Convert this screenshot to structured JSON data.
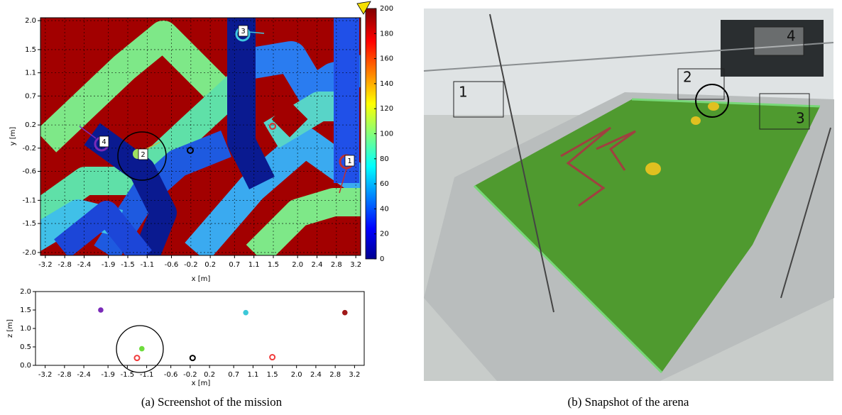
{
  "panel_a": {
    "map": {
      "xlabel": "x [m]",
      "ylabel": "y [m]",
      "xlim": [
        -3.3,
        3.3
      ],
      "ylim": [
        -2.05,
        2.05
      ],
      "xticks": [
        -3.2,
        -2.8,
        -2.4,
        -1.9,
        -1.5,
        -1.1,
        -0.6,
        -0.2,
        0.2,
        0.7,
        1.1,
        1.5,
        {
          "value": 2,
          "label": "2.0"
        },
        2.4,
        2.8,
        3.2
      ],
      "yticks": [
        {
          "value": 2,
          "label": "2.0"
        },
        1.5,
        1.1,
        0.7,
        0.2,
        -0.2,
        -0.6,
        -1.1,
        -1.5,
        {
          "value": -2,
          "label": "-2.0"
        }
      ],
      "grid": true,
      "robot_labels": [
        "1",
        "2",
        "3",
        "4"
      ],
      "colorbar": {
        "lim": [
          0,
          200
        ],
        "ticks": [
          0,
          20,
          40,
          60,
          80,
          100,
          120,
          140,
          160,
          180,
          200
        ]
      }
    },
    "elevation": {
      "xlabel": "x [m]",
      "ylabel": "z [m]",
      "xlim": [
        -3.4,
        3.4
      ],
      "ylim": [
        0,
        2
      ],
      "xticks": [
        -3.2,
        -2.8,
        -2.4,
        -1.9,
        -1.5,
        -1.1,
        -0.6,
        -0.2,
        0.2,
        0.7,
        1.1,
        1.5,
        {
          "value": 2,
          "label": "2.0"
        },
        2.4,
        2.8,
        3.2
      ],
      "yticks": [
        {
          "value": 0,
          "label": "0.0"
        },
        0.5,
        {
          "value": 1,
          "label": "1.0"
        },
        1.5,
        {
          "value": 2,
          "label": "2.0"
        }
      ],
      "points": [
        {
          "x": -2.05,
          "z": 1.5,
          "color": "#7a2ab8",
          "style": "dot"
        },
        {
          "x": 0.95,
          "z": 1.43,
          "color": "#3cc8d8",
          "style": "dot"
        },
        {
          "x": 3.0,
          "z": 1.43,
          "color": "#a01818",
          "style": "dot"
        },
        {
          "x": -1.2,
          "z": 0.45,
          "color": "#6edc3c",
          "style": "dot"
        },
        {
          "x": -1.3,
          "z": 0.2,
          "color": "#f03c3c",
          "style": "ring"
        },
        {
          "x": -0.15,
          "z": 0.2,
          "color": "#000000",
          "style": "ring"
        },
        {
          "x": 1.5,
          "z": 0.22,
          "color": "#f03c3c",
          "style": "ring"
        }
      ]
    },
    "caption": "(a)  Screenshot of the mission"
  },
  "panel_b": {
    "labels": [
      "1",
      "2",
      "3",
      "4"
    ],
    "caption": "(b)  Snapshot of the arena"
  }
}
